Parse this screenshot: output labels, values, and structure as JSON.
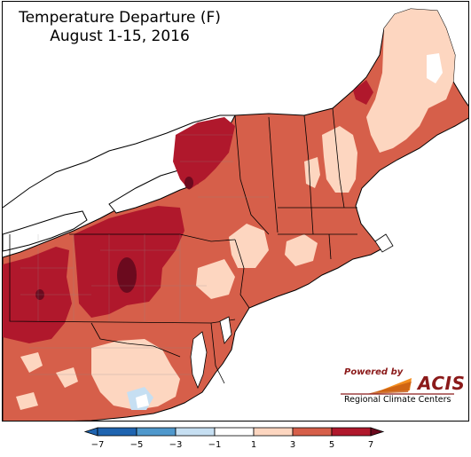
{
  "title": {
    "line1": "Temperature Departure (F)",
    "line2": "August 1-15, 2016"
  },
  "logo": {
    "powered_by": "Powered by",
    "brand": "ACIS",
    "subtitle": "Regional Climate Centers"
  },
  "legend": {
    "bins": [
      {
        "from": -7,
        "to": -5,
        "color": "#1f64b0"
      },
      {
        "from": -5,
        "to": -3,
        "color": "#4f98cc"
      },
      {
        "from": -3,
        "to": -1,
        "color": "#c6dff2"
      },
      {
        "from": -1,
        "to": 1,
        "color": "#ffffff"
      },
      {
        "from": 1,
        "to": 3,
        "color": "#fdd6c0"
      },
      {
        "from": 3,
        "to": 5,
        "color": "#d65f4a"
      },
      {
        "from": 5,
        "to": 7,
        "color": "#b0182c"
      }
    ],
    "tick_labels": [
      "−7",
      "−5",
      "−3",
      "−1",
      "1",
      "3",
      "5",
      "7"
    ]
  },
  "colors": {
    "water": "#ffffff",
    "anomaly_1_3": "#fdd6c0",
    "anomaly_3_5": "#d65f4a",
    "anomaly_5_7": "#b0182c",
    "anomaly_7_plus": "#6b0a1e",
    "anomaly_minus1_minus3": "#c6dff2"
  }
}
